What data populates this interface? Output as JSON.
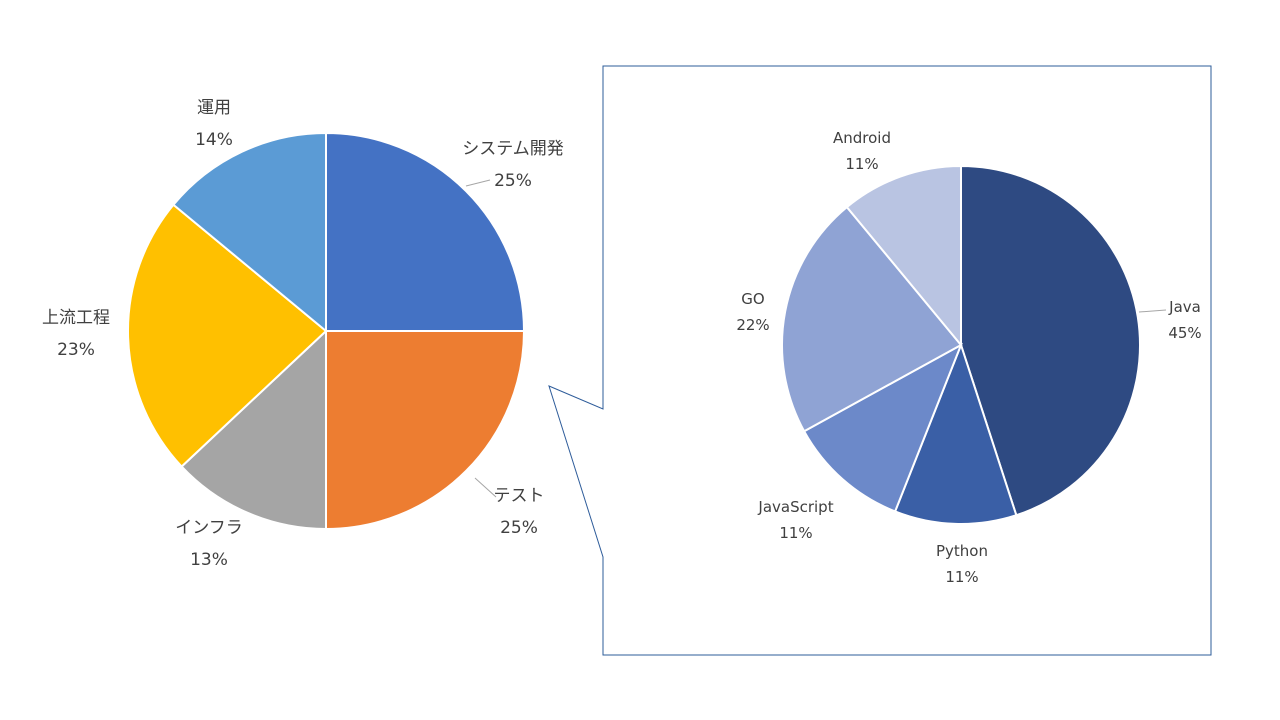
{
  "chart_data": [
    {
      "type": "pie",
      "slices": [
        {
          "label": "システム開発",
          "value": 25,
          "pct_text": "25%",
          "color": "#4472C4"
        },
        {
          "label": "テスト",
          "value": 25,
          "pct_text": "25%",
          "color": "#ED7D31"
        },
        {
          "label": "インフラ",
          "value": 13,
          "pct_text": "13%",
          "color": "#A5A5A5"
        },
        {
          "label": "上流工程",
          "value": 23,
          "pct_text": "23%",
          "color": "#FFC000"
        },
        {
          "label": "運用",
          "value": 14,
          "pct_text": "14%",
          "color": "#5B9BD5"
        }
      ],
      "start": "12 o'clock",
      "direction": "clockwise"
    },
    {
      "type": "pie",
      "breakdown_of": "システム開発",
      "slices": [
        {
          "label": "Java",
          "value": 45,
          "pct_text": "45%",
          "color": "#2E4A82"
        },
        {
          "label": "Python",
          "value": 11,
          "pct_text": "11%",
          "color": "#3A5FA6"
        },
        {
          "label": "JavaScript",
          "value": 11,
          "pct_text": "11%",
          "color": "#6C89C9"
        },
        {
          "label": "GO",
          "value": 22,
          "pct_text": "22%",
          "color": "#8FA3D4"
        },
        {
          "label": "Android",
          "value": 11,
          "pct_text": "11%",
          "color": "#B9C4E2"
        }
      ],
      "start": "12 o'clock",
      "direction": "clockwise"
    }
  ],
  "frame_color": "#2E5C9A"
}
